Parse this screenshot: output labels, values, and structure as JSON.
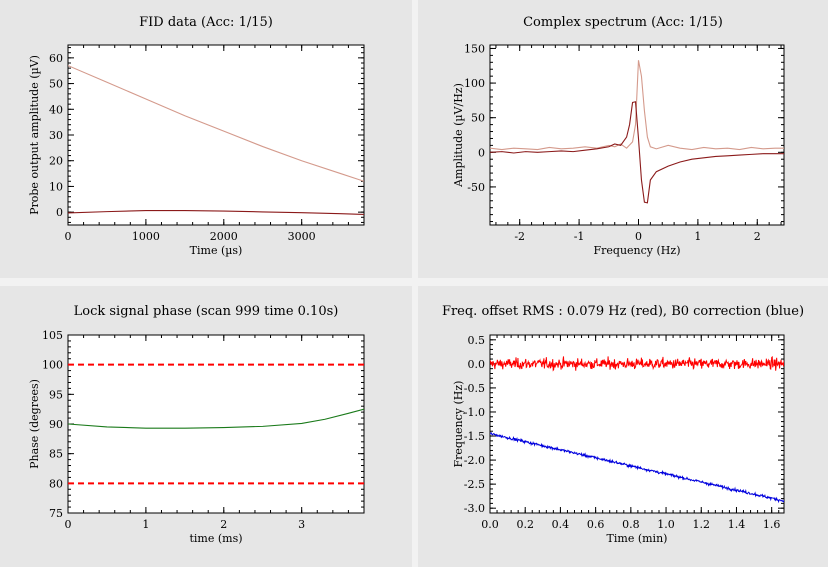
{
  "chart_data": [
    {
      "type": "line",
      "title": "FID data (Acc: 1/15)",
      "xlabel": "Time (µs)",
      "ylabel": "Probe output amplitude (µV)",
      "xlim": [
        0,
        3800
      ],
      "ylim": [
        -5,
        65
      ],
      "xticks": [
        0,
        1000,
        2000,
        3000
      ],
      "yticks": [
        0,
        10,
        20,
        30,
        40,
        50,
        60
      ],
      "series": [
        {
          "color": "#d49a8c",
          "x": [
            0,
            500,
            1000,
            1500,
            2000,
            2500,
            3000,
            3500,
            3800
          ],
          "y": [
            57,
            50.5,
            44,
            37.5,
            31.5,
            25.5,
            20,
            15,
            12
          ]
        },
        {
          "color": "#8b1a1a",
          "x": [
            0,
            500,
            1000,
            1500,
            2000,
            2500,
            3000,
            3500,
            3800
          ],
          "y": [
            -0.3,
            0.2,
            0.6,
            0.6,
            0.4,
            0.1,
            -0.2,
            -0.6,
            -0.9
          ]
        }
      ]
    },
    {
      "type": "line",
      "title": "Complex spectrum (Acc: 1/15)",
      "xlabel": "Frequency (Hz)",
      "ylabel": "Amplitude (µV/Hz)",
      "xlim": [
        -2.5,
        2.45
      ],
      "ylim": [
        -105,
        155
      ],
      "xticks": [
        -2,
        -1,
        0,
        1,
        2
      ],
      "yticks": [
        -50,
        0,
        50,
        100,
        150
      ],
      "series": [
        {
          "color": "#d49a8c",
          "x": [
            -2.5,
            -2.3,
            -2.1,
            -1.9,
            -1.7,
            -1.5,
            -1.3,
            -1.1,
            -0.9,
            -0.7,
            -0.5,
            -0.4,
            -0.3,
            -0.2,
            -0.1,
            -0.05,
            0,
            0.05,
            0.1,
            0.15,
            0.2,
            0.3,
            0.5,
            0.7,
            0.9,
            1.1,
            1.3,
            1.5,
            1.7,
            1.9,
            2.1,
            2.3,
            2.45
          ],
          "y": [
            6,
            4,
            6,
            5,
            4,
            7,
            5,
            6,
            8,
            6,
            10,
            8,
            12,
            6,
            15,
            40,
            133,
            110,
            60,
            22,
            8,
            5,
            10,
            6,
            4,
            7,
            5,
            6,
            4,
            7,
            5,
            6,
            6
          ]
        },
        {
          "color": "#8b1a1a",
          "x": [
            -2.5,
            -2.3,
            -2.1,
            -1.9,
            -1.7,
            -1.5,
            -1.3,
            -1.1,
            -0.9,
            -0.7,
            -0.5,
            -0.4,
            -0.3,
            -0.2,
            -0.15,
            -0.1,
            -0.05,
            0,
            0.05,
            0.1,
            0.15,
            0.2,
            0.3,
            0.5,
            0.7,
            0.9,
            1.1,
            1.3,
            1.5,
            1.7,
            1.9,
            2.1,
            2.3,
            2.45
          ],
          "y": [
            0,
            1,
            -1,
            1,
            0,
            1,
            2,
            1,
            3,
            5,
            8,
            12,
            10,
            22,
            40,
            72,
            73,
            20,
            -40,
            -72,
            -73,
            -40,
            -28,
            -20,
            -14,
            -10,
            -8,
            -6,
            -5,
            -4,
            -3,
            -2,
            -2,
            -2
          ]
        }
      ]
    },
    {
      "type": "line",
      "title": "Lock signal phase (scan 999 time 0.10s)",
      "xlabel": "time (ms)",
      "ylabel": "Phase (degrees)",
      "xlim": [
        0,
        3.8
      ],
      "ylim": [
        75,
        105
      ],
      "xticks": [
        0,
        1,
        2,
        3
      ],
      "yticks": [
        75,
        80,
        85,
        90,
        95,
        100,
        105
      ],
      "series": [
        {
          "color": "#1a7a1a",
          "x": [
            0,
            0.5,
            1,
            1.5,
            2,
            2.5,
            3,
            3.3,
            3.6,
            3.8
          ],
          "y": [
            90,
            89.5,
            89.3,
            89.3,
            89.4,
            89.6,
            90.1,
            90.8,
            91.8,
            92.5
          ]
        }
      ],
      "reference_lines": [
        {
          "color": "#ff0000",
          "y": 100,
          "style": "dashed"
        },
        {
          "color": "#ff0000",
          "y": 80,
          "style": "dashed"
        }
      ]
    },
    {
      "type": "line",
      "title": "Freq. offset RMS : 0.079 Hz (red), B0 correction (blue)",
      "xlabel": "Time (min)",
      "ylabel": "Frequency (Hz)",
      "xlim": [
        0,
        1.67
      ],
      "ylim": [
        -3.1,
        0.6
      ],
      "xticks": [
        0,
        0.2,
        0.4,
        0.6,
        0.8,
        1,
        1.2,
        1.4,
        1.6
      ],
      "yticks": [
        -3.0,
        -2.5,
        -2.0,
        -1.5,
        -1.0,
        -0.5,
        0.0,
        0.5
      ],
      "series": [
        {
          "color": "#ff0000",
          "kind": "noise",
          "x": [
            0,
            1.67
          ],
          "mean": 0.0,
          "rms": 0.079
        },
        {
          "color": "#0000dd",
          "kind": "noisy-trend",
          "x": [
            0,
            1.67
          ],
          "y": [
            -1.45,
            -2.85
          ],
          "rms": 0.02
        }
      ]
    }
  ]
}
